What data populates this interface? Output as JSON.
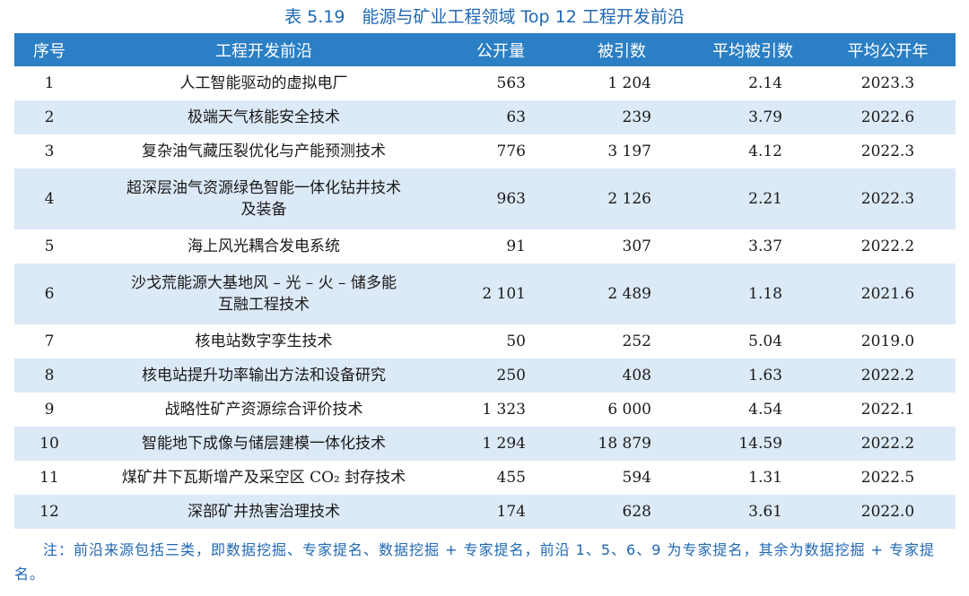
{
  "caption": "表 5.19　能源与矿业工程领域 Top 12 工程开发前沿",
  "headers": {
    "no": "序号",
    "title": "工程开发前沿",
    "publications": "公开量",
    "citations": "被引数",
    "avg_citations": "平均被引数",
    "avg_year": "平均公开年"
  },
  "rows": [
    {
      "no": "1",
      "title": "人工智能驱动的虚拟电厂",
      "title2": "",
      "publications": "563",
      "citations": "1 204",
      "avg_citations": "2.14",
      "avg_year": "2023.3"
    },
    {
      "no": "2",
      "title": "极端天气核能安全技术",
      "title2": "",
      "publications": "63",
      "citations": "239",
      "avg_citations": "3.79",
      "avg_year": "2022.6"
    },
    {
      "no": "3",
      "title": "复杂油气藏压裂优化与产能预测技术",
      "title2": "",
      "publications": "776",
      "citations": "3 197",
      "avg_citations": "4.12",
      "avg_year": "2022.3"
    },
    {
      "no": "4",
      "title": "超深层油气资源绿色智能一体化钻井技术",
      "title2": "及装备",
      "publications": "963",
      "citations": "2 126",
      "avg_citations": "2.21",
      "avg_year": "2022.3"
    },
    {
      "no": "5",
      "title": "海上风光耦合发电系统",
      "title2": "",
      "publications": "91",
      "citations": "307",
      "avg_citations": "3.37",
      "avg_year": "2022.2"
    },
    {
      "no": "6",
      "title": "沙戈荒能源大基地风 – 光 – 火 – 储多能",
      "title2": "互融工程技术",
      "publications": "2 101",
      "citations": "2 489",
      "avg_citations": "1.18",
      "avg_year": "2021.6"
    },
    {
      "no": "7",
      "title": "核电站数字孪生技术",
      "title2": "",
      "publications": "50",
      "citations": "252",
      "avg_citations": "5.04",
      "avg_year": "2019.0"
    },
    {
      "no": "8",
      "title": "核电站提升功率输出方法和设备研究",
      "title2": "",
      "publications": "250",
      "citations": "408",
      "avg_citations": "1.63",
      "avg_year": "2022.2"
    },
    {
      "no": "9",
      "title": "战略性矿产资源综合评价技术",
      "title2": "",
      "publications": "1 323",
      "citations": "6 000",
      "avg_citations": "4.54",
      "avg_year": "2022.1"
    },
    {
      "no": "10",
      "title": "智能地下成像与储层建模一体化技术",
      "title2": "",
      "publications": "1 294",
      "citations": "18 879",
      "avg_citations": "14.59",
      "avg_year": "2022.2"
    },
    {
      "no": "11",
      "title": "煤矿井下瓦斯增产及采空区 CO₂ 封存技术",
      "title2": "",
      "publications": "455",
      "citations": "594",
      "avg_citations": "1.31",
      "avg_year": "2022.5"
    },
    {
      "no": "12",
      "title": "深部矿井热害治理技术",
      "title2": "",
      "publications": "174",
      "citations": "628",
      "avg_citations": "3.61",
      "avg_year": "2022.0"
    }
  ],
  "note": "注：前沿来源包括三类，即数据挖掘、专家提名、数据挖掘 + 专家提名，前沿 1、5、6、9 为专家提名，其余为数据挖掘 + 专家提名。"
}
